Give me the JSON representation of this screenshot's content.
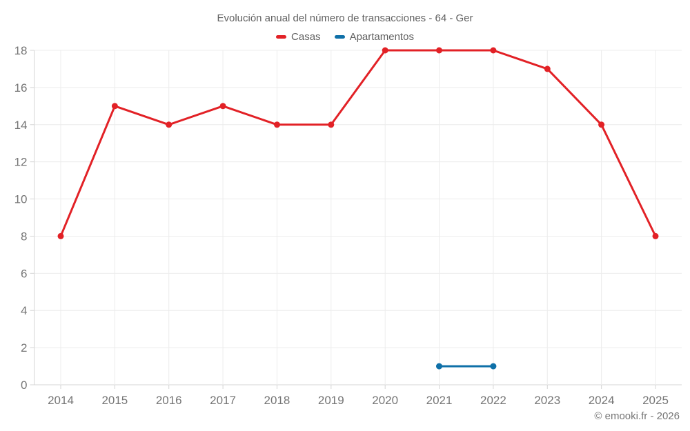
{
  "page": {
    "background": "#ffffff"
  },
  "chart_data": {
    "type": "line",
    "title": "Evolución anual del número de transacciones - 64 - Ger",
    "categories": [
      "2014",
      "2015",
      "2016",
      "2017",
      "2018",
      "2019",
      "2020",
      "2021",
      "2022",
      "2023",
      "2024",
      "2025"
    ],
    "series": [
      {
        "name": "Casas",
        "color": "#e22126",
        "values": [
          8,
          15,
          14,
          15,
          14,
          14,
          18,
          18,
          18,
          17,
          14,
          8
        ]
      },
      {
        "name": "Apartamentos",
        "color": "#0f70a8",
        "values": [
          null,
          null,
          null,
          null,
          null,
          null,
          null,
          1,
          1,
          null,
          null,
          null
        ]
      }
    ],
    "ylim": [
      0,
      18
    ],
    "ytick_step": 2,
    "xlabel": "",
    "ylabel": "",
    "grid": true,
    "legend_position": "top",
    "title_color": "#616161",
    "axis_text_color": "#757575",
    "gridline_color": "#ececec",
    "axis_line_color": "#d4d4d4"
  },
  "footer": {
    "credit": "© emooki.fr - 2026"
  }
}
